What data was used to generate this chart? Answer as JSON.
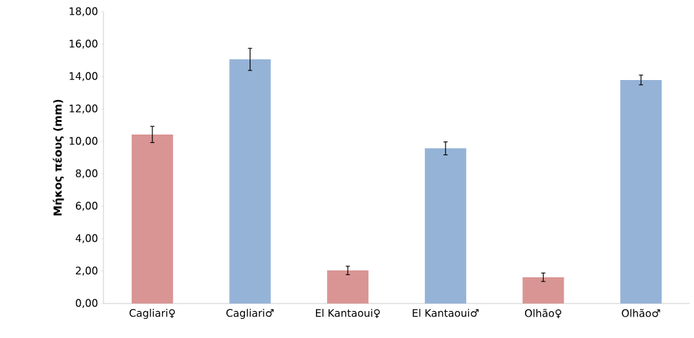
{
  "chart_data": {
    "type": "bar",
    "ylabel": "Μήκος πέους (mm)",
    "categories": [
      "Cagliari♀",
      "Cagliari♂",
      "El Kantaoui♀",
      "El Kantaoui♂",
      "Olhão♀",
      "Olhão♂"
    ],
    "values": [
      10.43,
      15.06,
      2.04,
      9.57,
      1.62,
      13.79
    ],
    "errors": [
      0.5,
      0.68,
      0.26,
      0.4,
      0.26,
      0.3
    ],
    "colors": [
      "#d99594",
      "#95b3d7",
      "#d99594",
      "#95b3d7",
      "#d99594",
      "#95b3d7"
    ],
    "ylim": [
      0,
      18
    ],
    "yticks": [
      {
        "value": 0,
        "label": "0,00"
      },
      {
        "value": 2,
        "label": "2,00"
      },
      {
        "value": 4,
        "label": "4,00"
      },
      {
        "value": 6,
        "label": "6,00"
      },
      {
        "value": 8,
        "label": "8,00"
      },
      {
        "value": 10,
        "label": "10,00"
      },
      {
        "value": 12,
        "label": "12,00"
      },
      {
        "value": 14,
        "label": "14,00"
      },
      {
        "value": 16,
        "label": "16,00"
      },
      {
        "value": 18,
        "label": "18,00"
      }
    ],
    "grid": false
  }
}
